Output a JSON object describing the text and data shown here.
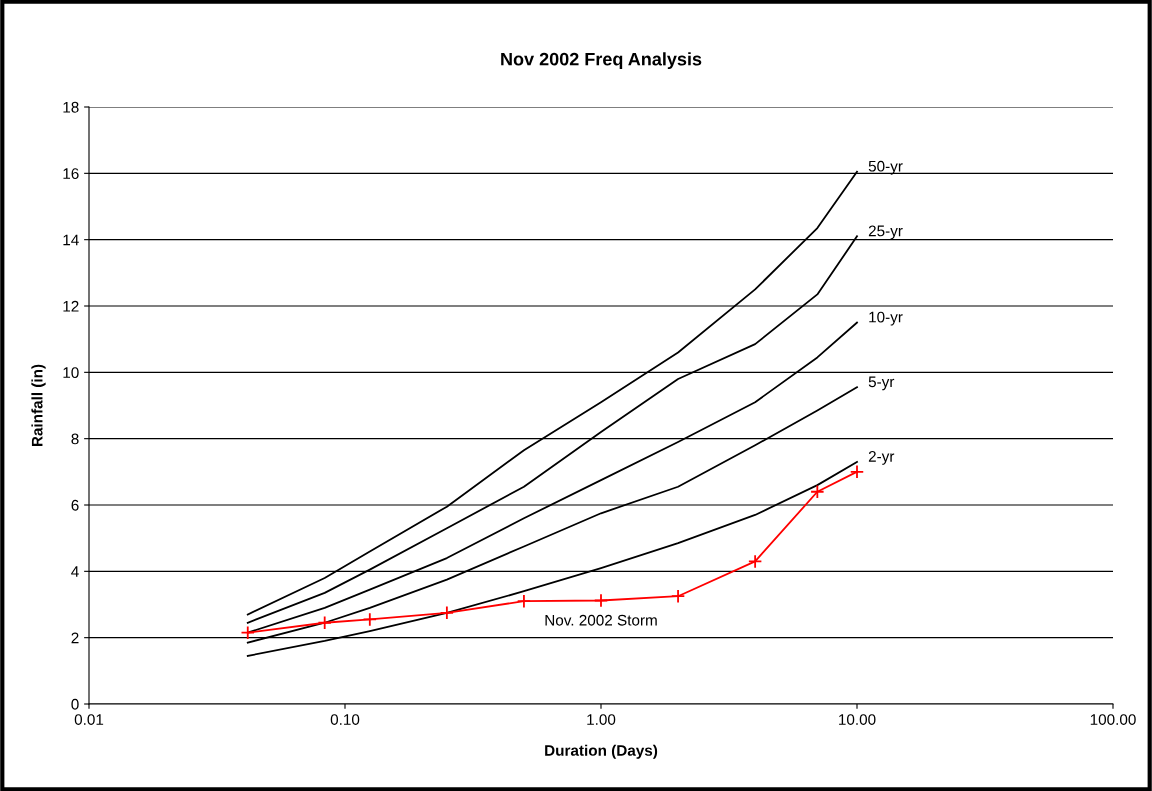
{
  "chart_data": {
    "type": "line",
    "title": "Nov 2002 Freq Analysis",
    "xlabel": "Duration (Days)",
    "ylabel": "Rainfall (in)",
    "x": [
      0.0417,
      0.0833,
      0.125,
      0.25,
      0.5,
      1,
      2,
      4,
      7,
      10
    ],
    "series": [
      {
        "name": "50-yr",
        "color": "#000000",
        "values": [
          2.7,
          3.8,
          4.6,
          5.95,
          7.65,
          9.1,
          10.6,
          12.5,
          14.35,
          16.05
        ]
      },
      {
        "name": "25-yr",
        "color": "#000000",
        "values": [
          2.45,
          3.35,
          4.05,
          5.3,
          6.55,
          8.2,
          9.8,
          10.85,
          12.35,
          14.1
        ]
      },
      {
        "name": "10-yr",
        "color": "#000000",
        "values": [
          2.15,
          2.9,
          3.45,
          4.4,
          5.6,
          6.75,
          7.9,
          9.1,
          10.45,
          11.5
        ]
      },
      {
        "name": "5-yr",
        "color": "#000000",
        "values": [
          1.85,
          2.45,
          2.9,
          3.75,
          4.75,
          5.75,
          6.55,
          7.8,
          8.85,
          9.55
        ]
      },
      {
        "name": "2-yr",
        "color": "#000000",
        "values": [
          1.45,
          1.9,
          2.2,
          2.75,
          3.4,
          4.1,
          4.85,
          5.7,
          6.6,
          7.3
        ]
      },
      {
        "name": "Nov. 2002 Storm",
        "color": "#ff0000",
        "marker": "cross",
        "values": [
          2.15,
          2.45,
          2.55,
          2.75,
          3.1,
          3.12,
          3.25,
          4.3,
          6.4,
          7.0
        ]
      }
    ],
    "log": "x",
    "xlim": [
      0.01,
      100
    ],
    "xticks": [
      {
        "value": 0.01,
        "label": "0.01"
      },
      {
        "value": 0.1,
        "label": "0.10"
      },
      {
        "value": 1,
        "label": "1.00"
      },
      {
        "value": 10,
        "label": "10.00"
      },
      {
        "value": 100,
        "label": "100.00"
      }
    ],
    "ylim": [
      0,
      18
    ],
    "yticks": [
      0,
      2,
      4,
      6,
      8,
      10,
      12,
      14,
      16,
      18
    ],
    "grid": "y",
    "legend": false
  }
}
